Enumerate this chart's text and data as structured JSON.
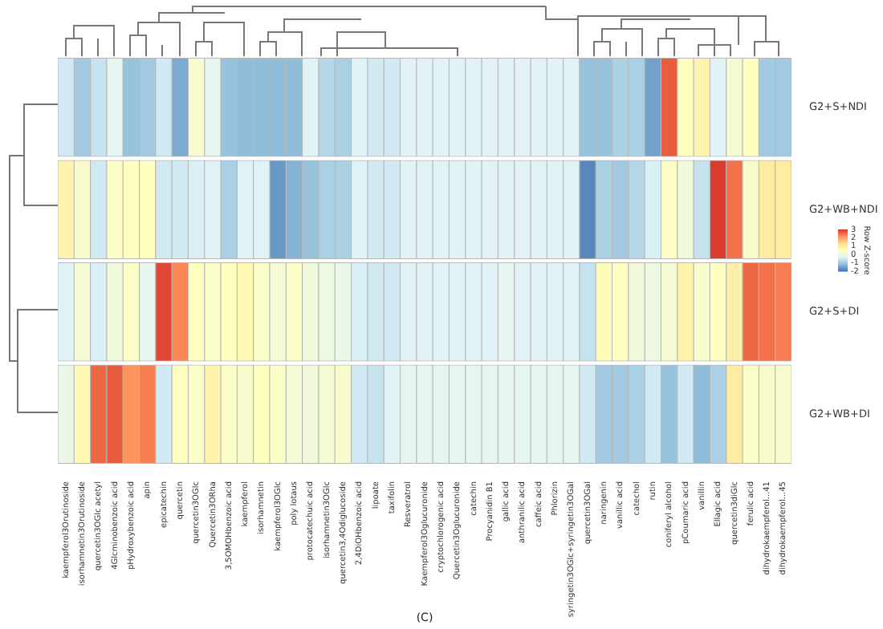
{
  "chart_data": {
    "type": "heatmap",
    "clabel": "Row Z-score",
    "annotations": [
      "(C)"
    ],
    "categories": [
      "kaempferol3Orutinoside",
      "isorhamnetin3Orutinoside",
      "quercetin3OGlc acetyl",
      "4Glcminobenzoic acid",
      "pHydroxybenzoic acid",
      "apin",
      "epicatechin",
      "quercetin",
      "quercetin3OGlc",
      "Quercetin3ORha",
      "3,5OMOHbenzoic acid",
      "kaempferol",
      "isorhamnetin",
      "kaempferol3OGlc",
      "poly lotaus",
      "protocatechuic acid",
      "isorhamnetin3OGlc",
      "quercetin3,4Odiglucoside",
      "2,4DiOHbenzoic acid",
      "lipoate",
      "taxifolin",
      "Resveratrol",
      "Kaempferol3Oglucuronide",
      "cryptochlorogenic acid",
      "Quercetin3Oglucuronide",
      "catechin",
      "Procyanidin B1",
      "gallic acid",
      "anthranilic acid",
      "caffeic acid",
      "Phlorizin",
      "syringetin3OGlc+syringetin3OGal",
      "quercetin3OGal",
      "naringenin",
      "vanillic acid",
      "catechol",
      "rutin",
      "coniferyl alcohol",
      "pCoumaric acid",
      "vanillin",
      "Ellagic acid",
      "quercetin3diGlc",
      "ferulic acid",
      "dihydrokaempferol...41",
      "dihydrokaempferol...45"
    ],
    "y_categories": [
      "G2+S+NDI",
      "G2+WB+NDI",
      "G2+S+DI",
      "G2+WB+DI"
    ],
    "cells": [
      [
        -0.5,
        -1,
        -0.6,
        -0.2,
        -1.1,
        -1,
        -0.5,
        -1.4,
        0.3,
        -0.2,
        -1.1,
        -1.2,
        -1.2,
        -1.2,
        -1.2,
        -0.3,
        -0.8,
        -0.9,
        -0.3,
        -0.5,
        -0.5,
        -0.3,
        -0.3,
        -0.3,
        -0.3,
        -0.3,
        -0.3,
        -0.3,
        -0.3,
        -0.3,
        -0.3,
        -0.3,
        -1.1,
        -1.1,
        -0.9,
        -0.9,
        -1.5,
        2.6,
        0.5,
        0.8,
        -0.3,
        0.2,
        0.5,
        -1,
        -1
      ],
      [
        0.8,
        0.3,
        -0.5,
        0.4,
        0.5,
        0.5,
        -0.5,
        -0.5,
        -0.4,
        -0.3,
        -0.9,
        -0.3,
        -0.3,
        -1.6,
        -1.3,
        -1.1,
        -0.9,
        -0.9,
        -0.3,
        -0.5,
        -0.5,
        -0.3,
        -0.3,
        -0.3,
        -0.3,
        -0.3,
        -0.3,
        -0.3,
        -0.3,
        -0.3,
        -0.3,
        -0.3,
        -1.8,
        -0.9,
        -1,
        -0.8,
        -0.4,
        0.4,
        0.1,
        -0.6,
        2.9,
        2.4,
        0.3,
        1,
        1
      ],
      [
        -0.3,
        0.2,
        -0.4,
        0.1,
        0.4,
        -0.2,
        2.8,
        2.2,
        0.5,
        0.4,
        0.5,
        0.7,
        0.4,
        0.2,
        0.4,
        0.1,
        0,
        -0.1,
        -0.4,
        -0.5,
        -0.5,
        -0.3,
        -0.3,
        -0.3,
        -0.3,
        -0.3,
        -0.3,
        -0.2,
        -0.3,
        -0.3,
        -0.3,
        -0.3,
        -0.6,
        0.6,
        0.5,
        0.1,
        0,
        0.2,
        0.8,
        0.3,
        0.5,
        0.9,
        2.5,
        2.4,
        2.3
      ],
      [
        -0.1,
        0.7,
        2.5,
        2.6,
        2.1,
        2.3,
        -0.5,
        0.5,
        0.4,
        0.8,
        0.4,
        0.3,
        0.5,
        0.4,
        0.2,
        0.1,
        0.2,
        0.3,
        -0.5,
        -0.6,
        -0.3,
        -0.2,
        -0.2,
        -0.2,
        -0.2,
        -0.2,
        -0.2,
        -0.2,
        -0.2,
        -0.2,
        -0.2,
        -0.2,
        -0.5,
        -1,
        -1,
        -0.9,
        -0.5,
        -1.1,
        -0.5,
        -1.2,
        -0.9,
        1,
        0.4,
        0.3,
        0.3
      ]
    ],
    "clim": [
      -2,
      3
    ],
    "cticks": [
      -2,
      -1,
      0,
      1,
      2,
      3
    ]
  }
}
